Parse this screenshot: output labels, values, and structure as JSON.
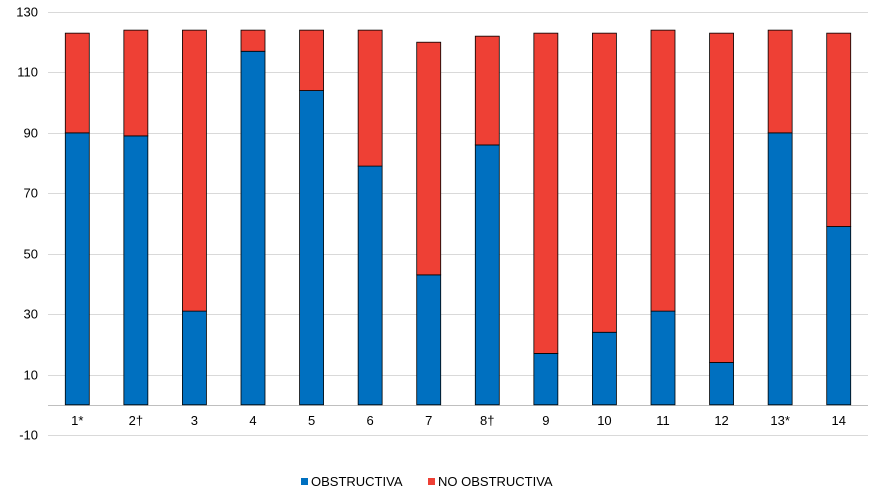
{
  "chart_data": {
    "type": "bar",
    "stacked": true,
    "categories": [
      "1*",
      "2†",
      "3",
      "4",
      "5",
      "6",
      "7",
      "8†",
      "9",
      "10",
      "11",
      "12",
      "13*",
      "14"
    ],
    "series": [
      {
        "name": "OBSTRUCTIVA",
        "color": "#0070C0",
        "values": [
          90,
          89,
          31,
          117,
          104,
          79,
          43,
          86,
          17,
          24,
          31,
          14,
          90,
          59
        ]
      },
      {
        "name": "NO OBSTRUCTIVA",
        "color": "#EE4035",
        "values": [
          33,
          35,
          93,
          7,
          20,
          45,
          77,
          36,
          106,
          99,
          93,
          109,
          34,
          64
        ]
      }
    ],
    "ylim": [
      -10,
      130
    ],
    "yticks": [
      -10,
      10,
      30,
      50,
      70,
      90,
      110,
      130
    ],
    "grid": true,
    "legend": "bottom",
    "title": "",
    "xlabel": "",
    "ylabel": ""
  }
}
